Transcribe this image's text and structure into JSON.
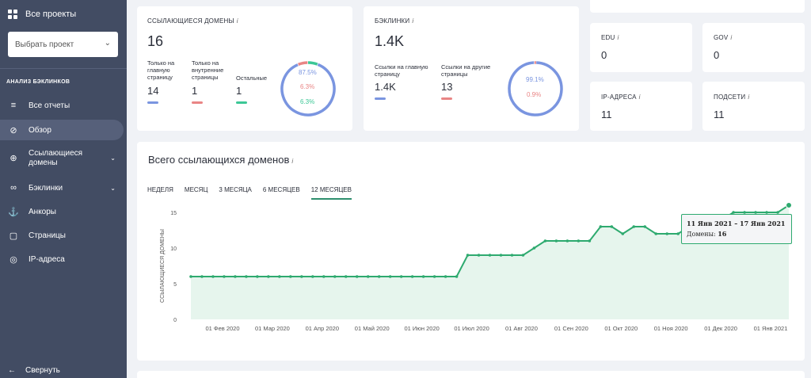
{
  "sidebar": {
    "all_projects": "Все проекты",
    "select_placeholder": "Выбрать проект",
    "section_title": "АНАЛИЗ БЭКЛИНКОВ",
    "items": [
      {
        "label": "Все отчеты",
        "icon": "list-icon"
      },
      {
        "label": "Обзор",
        "icon": "compass-icon"
      },
      {
        "label": "Ссылающиеся домены",
        "icon": "globe-icon"
      },
      {
        "label": "Бэклинки",
        "icon": "link-icon"
      },
      {
        "label": "Анкоры",
        "icon": "anchor-icon"
      },
      {
        "label": "Страницы",
        "icon": "page-icon"
      },
      {
        "label": "IP-адреса",
        "icon": "target-icon"
      }
    ],
    "collapse": "Свернуть"
  },
  "domains_card": {
    "title": "ССЫЛАЮЩИЕСЯ ДОМЕНЫ",
    "info": "i",
    "total": "16",
    "stats": [
      {
        "label": "Только на главную страницу",
        "value": "14",
        "color": "#7a95e0"
      },
      {
        "label": "Только на внутренние страницы",
        "value": "1",
        "color": "#e98585"
      },
      {
        "label": "Остальные",
        "value": "1",
        "color": "#3cc796"
      }
    ],
    "percents": [
      "87.5%",
      "6.3%",
      "6.3%"
    ]
  },
  "backlinks_card": {
    "title": "БЭКЛИНКИ",
    "info": "i",
    "total": "1.4K",
    "stats": [
      {
        "label": "Ссылки на главную страницу",
        "value": "1.4K",
        "color": "#7a95e0"
      },
      {
        "label": "Ссылки на другие страницы",
        "value": "13",
        "color": "#e98585"
      }
    ],
    "percents": [
      "99.1%",
      "0.9%"
    ]
  },
  "small_cards": [
    {
      "title": "EDU",
      "info": "i",
      "value": "0"
    },
    {
      "title": "GOV",
      "info": "i",
      "value": "0"
    },
    {
      "title": "IP-АДРЕСА",
      "info": "i",
      "value": "11"
    },
    {
      "title": "ПОДСЕТИ",
      "info": "i",
      "value": "11"
    }
  ],
  "chart_section": {
    "title": "Всего ссылающихся доменов",
    "info": "i",
    "tabs": [
      "НЕДЕЛЯ",
      "МЕСЯЦ",
      "3 МЕСЯЦА",
      "6 МЕСЯЦЕВ",
      "12 МЕСЯЦЕВ"
    ],
    "active_tab": 4,
    "tooltip_title": "11 Янв 2021 – 17 Янв 2021",
    "tooltip_label": "Домены:",
    "tooltip_value": "16"
  },
  "chart_data": {
    "type": "area",
    "ylabel": "ССЫЛАЮЩИЕСЯ ДОМЕНЫ",
    "ylim": [
      0,
      15
    ],
    "yticks": [
      0,
      5,
      10,
      15
    ],
    "xticks": [
      "01 Фев 2020",
      "01 Мар 2020",
      "01 Апр 2020",
      "01 Май 2020",
      "01 Июн 2020",
      "01 Июл 2020",
      "01 Авг 2020",
      "01 Сен 2020",
      "01 Окт 2020",
      "01 Ноя 2020",
      "01 Дек 2020",
      "01 Янв 2021"
    ],
    "series": [
      {
        "color": "#2eaa6f",
        "values": [
          6,
          6,
          6,
          6,
          6,
          6,
          6,
          6,
          6,
          6,
          6,
          6,
          6,
          6,
          6,
          6,
          6,
          6,
          6,
          6,
          6,
          6,
          6,
          6,
          6,
          9,
          9,
          9,
          9,
          9,
          9,
          10,
          11,
          11,
          11,
          11,
          11,
          13,
          13,
          12,
          13,
          13,
          12,
          12,
          12,
          13,
          13,
          14,
          14,
          15,
          15,
          15,
          15,
          15,
          16
        ]
      }
    ]
  }
}
